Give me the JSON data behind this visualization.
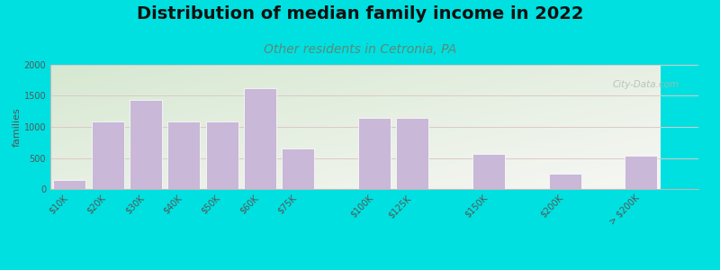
{
  "title": "Distribution of median family income in 2022",
  "subtitle": "Other residents in Cetronia, PA",
  "ylabel": "families",
  "categories": [
    "$10K",
    "$20K",
    "$30K",
    "$40K",
    "$50K",
    "$60K",
    "$75K",
    "$100K",
    "$125K",
    "$150K",
    "$200K",
    "> $200K"
  ],
  "values": [
    140,
    1090,
    1430,
    1090,
    1090,
    1620,
    650,
    1150,
    1150,
    570,
    240,
    540
  ],
  "bar_positions": [
    0,
    1,
    2,
    3,
    4,
    5,
    6,
    8,
    9,
    11,
    13,
    15
  ],
  "bar_color": "#c9b8d8",
  "bar_edge_color": "#ffffff",
  "background_outer": "#00e0e0",
  "background_plot_topleft": "#d6e8d0",
  "background_plot_bottomright": "#f8f8f4",
  "title_fontsize": 14,
  "subtitle_fontsize": 10,
  "subtitle_color": "#5a8a7a",
  "ylabel_fontsize": 8,
  "tick_label_fontsize": 7,
  "ylim": [
    0,
    2000
  ],
  "yticks": [
    0,
    500,
    1000,
    1500,
    2000
  ],
  "watermark": "City-Data.com",
  "grid_color": "#ddc8c8",
  "axis_line_color": "#bbbbbb"
}
